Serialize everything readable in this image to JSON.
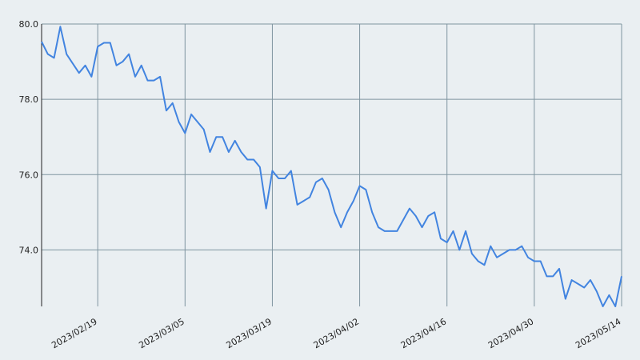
{
  "chart_data": {
    "type": "line",
    "x": [
      "2023/02/10",
      "2023/02/11",
      "2023/02/12",
      "2023/02/13",
      "2023/02/14",
      "2023/02/15",
      "2023/02/16",
      "2023/02/17",
      "2023/02/18",
      "2023/02/19",
      "2023/02/20",
      "2023/02/21",
      "2023/02/22",
      "2023/02/23",
      "2023/02/24",
      "2023/02/25",
      "2023/02/26",
      "2023/02/27",
      "2023/02/28",
      "2023/03/01",
      "2023/03/02",
      "2023/03/03",
      "2023/03/04",
      "2023/03/05",
      "2023/03/06",
      "2023/03/07",
      "2023/03/08",
      "2023/03/09",
      "2023/03/10",
      "2023/03/11",
      "2023/03/12",
      "2023/03/13",
      "2023/03/14",
      "2023/03/15",
      "2023/03/16",
      "2023/03/17",
      "2023/03/18",
      "2023/03/19",
      "2023/03/20",
      "2023/03/21",
      "2023/03/22",
      "2023/03/23",
      "2023/03/24",
      "2023/03/25",
      "2023/03/26",
      "2023/03/27",
      "2023/03/28",
      "2023/03/29",
      "2023/03/30",
      "2023/03/31",
      "2023/04/01",
      "2023/04/02",
      "2023/04/03",
      "2023/04/04",
      "2023/04/05",
      "2023/04/06",
      "2023/04/07",
      "2023/04/08",
      "2023/04/09",
      "2023/04/10",
      "2023/04/11",
      "2023/04/12",
      "2023/04/13",
      "2023/04/14",
      "2023/04/15",
      "2023/04/16",
      "2023/04/17",
      "2023/04/18",
      "2023/04/19",
      "2023/04/20",
      "2023/04/21",
      "2023/04/22",
      "2023/04/23",
      "2023/04/24",
      "2023/04/25",
      "2023/04/26",
      "2023/04/27",
      "2023/04/28",
      "2023/04/29",
      "2023/04/30",
      "2023/05/01",
      "2023/05/02",
      "2023/05/03",
      "2023/05/04",
      "2023/05/05",
      "2023/05/06",
      "2023/05/07",
      "2023/05/08",
      "2023/05/09",
      "2023/05/10",
      "2023/05/11",
      "2023/05/12",
      "2023/05/13",
      "2023/05/14"
    ],
    "series": [
      {
        "color": "#4284e0",
        "values": [
          79.53,
          79.2,
          79.1,
          79.93,
          79.2,
          78.95,
          78.7,
          78.9,
          78.6,
          79.4,
          79.5,
          79.5,
          78.9,
          79.0,
          79.2,
          78.6,
          78.9,
          78.5,
          78.5,
          78.6,
          77.7,
          77.9,
          77.4,
          77.1,
          77.6,
          77.4,
          77.2,
          76.6,
          77.0,
          77.0,
          76.6,
          76.9,
          76.6,
          76.4,
          76.4,
          76.2,
          75.1,
          76.1,
          75.9,
          75.9,
          76.1,
          75.2,
          75.3,
          75.4,
          75.8,
          75.9,
          75.6,
          75.0,
          74.6,
          75.0,
          75.3,
          75.7,
          75.6,
          75.0,
          74.6,
          74.5,
          74.5,
          74.5,
          74.8,
          75.1,
          74.9,
          74.6,
          74.9,
          75.0,
          74.3,
          74.2,
          74.5,
          74.0,
          74.5,
          73.9,
          73.7,
          73.6,
          74.1,
          73.8,
          73.9,
          74.0,
          74.0,
          74.1,
          73.8,
          73.7,
          73.7,
          73.3,
          73.3,
          73.5,
          72.7,
          73.2,
          73.1,
          73.0,
          73.2,
          72.9,
          72.5,
          72.8,
          72.5,
          73.3
        ]
      }
    ],
    "xlim": [
      "2023/02/10",
      "2023/05/14"
    ],
    "xticks": [
      "2023/02/19",
      "2023/03/05",
      "2023/03/19",
      "2023/04/02",
      "2023/04/16",
      "2023/04/30",
      "2023/05/14"
    ],
    "ylim": [
      72.5,
      80
    ],
    "yticks": [
      {
        "value": 74,
        "label": "74.0"
      },
      {
        "value": 76,
        "label": "76.0"
      },
      {
        "value": 78,
        "label": "78.0"
      },
      {
        "value": 80,
        "label": "80.0"
      }
    ],
    "grid": true
  }
}
